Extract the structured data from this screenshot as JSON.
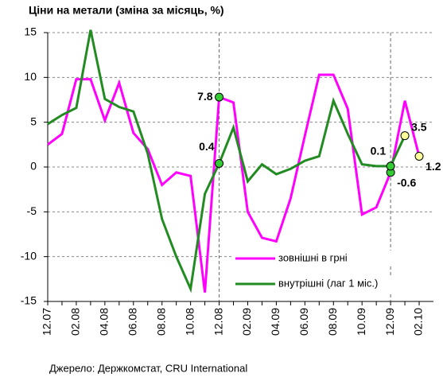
{
  "chart_data": {
    "type": "line",
    "title": "Ціни на метали (зміна за місяць, %)",
    "source": "Джерело: Держкомстат, CRU International",
    "categories": [
      "12.07",
      null,
      "02.08",
      null,
      "04.08",
      null,
      "06.08",
      null,
      "08.08",
      null,
      "10.08",
      null,
      "12.08",
      null,
      "02.09",
      null,
      "04.09",
      null,
      "06.09",
      null,
      "08.09",
      null,
      "10.09",
      null,
      "12.09",
      null,
      "02.10"
    ],
    "series": [
      {
        "name": "зовнішні в грні",
        "color": "#ff00ff",
        "values": [
          2.5,
          3.7,
          9.8,
          9.8,
          5.2,
          9.4,
          3.8,
          2.0,
          -2.0,
          -0.6,
          -1.0,
          -14,
          7.8,
          7.2,
          -5,
          -7.9,
          -8.3,
          -3.5,
          3.5,
          10.3,
          10.3,
          6.5,
          -5.3,
          -4.5,
          -0.6,
          7.4,
          1.2
        ],
        "value_labels": [
          null,
          null,
          null,
          null,
          null,
          null,
          null,
          null,
          null,
          null,
          null,
          null,
          "7.8",
          null,
          null,
          null,
          null,
          null,
          null,
          null,
          null,
          null,
          null,
          null,
          "-0.6",
          null,
          "1.2"
        ]
      },
      {
        "name": "внутрішні (лаг 1 міс.)",
        "color": "#228b22",
        "values": [
          4.8,
          5.8,
          6.6,
          15.3,
          7.6,
          6.7,
          6.2,
          1.5,
          -5.8,
          -10.0,
          -13.6,
          -3.0,
          0.4,
          4.4,
          -1.6,
          0.3,
          -0.8,
          -0.2,
          0.7,
          1.2,
          7.4,
          3.7,
          0.3,
          0.1,
          0.1,
          3.5,
          null
        ],
        "value_labels": [
          null,
          null,
          null,
          null,
          null,
          null,
          null,
          null,
          null,
          null,
          null,
          null,
          "0.4",
          null,
          null,
          null,
          null,
          null,
          null,
          null,
          null,
          null,
          null,
          null,
          "0.1",
          "3.5",
          null
        ]
      }
    ],
    "ylim": [
      -15,
      15
    ],
    "yticks": [
      -15,
      -10,
      -5,
      0,
      5,
      10,
      15
    ],
    "grid": true,
    "legend": "lower right",
    "marker_color": "#33cc33",
    "end_marker_color": "#ffff99"
  }
}
